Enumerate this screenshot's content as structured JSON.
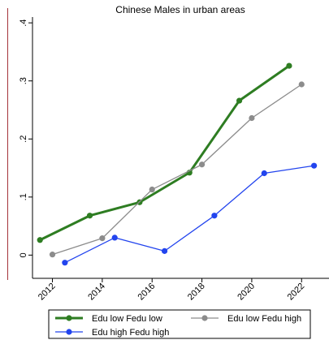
{
  "chart_data": {
    "type": "line",
    "title": "Chinese Males in urban areas",
    "xlabel": "",
    "ylabel": "",
    "xlim": [
      2011.2,
      2023.1
    ],
    "ylim": [
      -0.04,
      0.41
    ],
    "x_ticks": [
      2012,
      2014,
      2016,
      2018,
      2020,
      2022
    ],
    "x_tick_labels": [
      "2012",
      "2014",
      "2016",
      "2018",
      "2020",
      "2022"
    ],
    "y_ticks": [
      0,
      0.1,
      0.2,
      0.3,
      0.4
    ],
    "y_tick_labels": [
      "0",
      ".1",
      ".2",
      ".3",
      ".4"
    ],
    "grid": false,
    "legend_position": "bottom",
    "series": [
      {
        "name": "Edu low Fedu low",
        "color": "#2e7d22",
        "line_width": "thick",
        "points": [
          {
            "x": 2011.5,
            "y": 0.026
          },
          {
            "x": 2013.5,
            "y": 0.068
          },
          {
            "x": 2015.5,
            "y": 0.091
          },
          {
            "x": 2017.5,
            "y": 0.142
          },
          {
            "x": 2019.5,
            "y": 0.266
          },
          {
            "x": 2021.5,
            "y": 0.326
          }
        ]
      },
      {
        "name": "Edu low Fedu high",
        "color": "#8c8c8c",
        "line_width": "thin",
        "points": [
          {
            "x": 2012.0,
            "y": 0.001
          },
          {
            "x": 2014.0,
            "y": 0.029
          },
          {
            "x": 2016.0,
            "y": 0.113
          },
          {
            "x": 2018.0,
            "y": 0.156
          },
          {
            "x": 2020.0,
            "y": 0.236
          },
          {
            "x": 2022.0,
            "y": 0.294
          }
        ]
      },
      {
        "name": "Edu high Fedu high",
        "color": "#2244ee",
        "line_width": "thin",
        "points": [
          {
            "x": 2012.5,
            "y": -0.013
          },
          {
            "x": 2014.5,
            "y": 0.03
          },
          {
            "x": 2016.5,
            "y": 0.007
          },
          {
            "x": 2018.5,
            "y": 0.068
          },
          {
            "x": 2020.5,
            "y": 0.141
          },
          {
            "x": 2022.5,
            "y": 0.154
          }
        ]
      }
    ]
  }
}
